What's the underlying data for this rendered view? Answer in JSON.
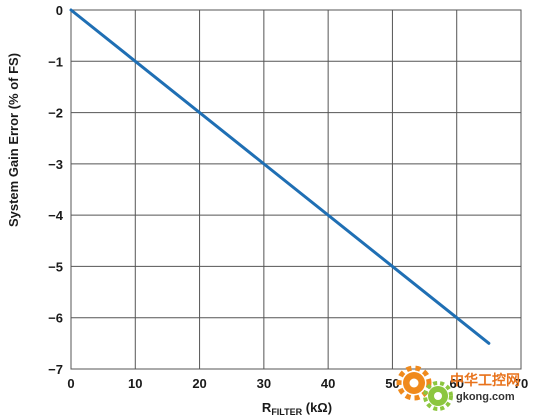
{
  "chart_data": {
    "type": "line",
    "ylabel": "System Gain Error (% of FS)",
    "xlabel_main": "R",
    "xlabel_sub": "FILTER",
    "xlabel_unit": " (kΩ)",
    "xlim": [
      0,
      70
    ],
    "ylim": [
      -7,
      0
    ],
    "x_ticks": [
      0,
      10,
      20,
      30,
      40,
      50,
      60,
      70
    ],
    "y_ticks": [
      0,
      -1,
      -2,
      -3,
      -4,
      -5,
      -6,
      -7
    ],
    "y_tick_labels": [
      "0",
      "−1",
      "−2",
      "−3",
      "−4",
      "−5",
      "−6",
      "−7"
    ],
    "grid": true,
    "series": [
      {
        "color": "#1f6fb4",
        "x": [
          0,
          65
        ],
        "y": [
          0,
          -6.5
        ]
      }
    ]
  },
  "watermark": {
    "cn_text": "中华工控网",
    "url_text": "gkong.com",
    "colors": {
      "cn": "#e8731c",
      "url": "#333333",
      "gear_orange": "#f08a1c",
      "gear_green": "#8cc63f"
    }
  }
}
